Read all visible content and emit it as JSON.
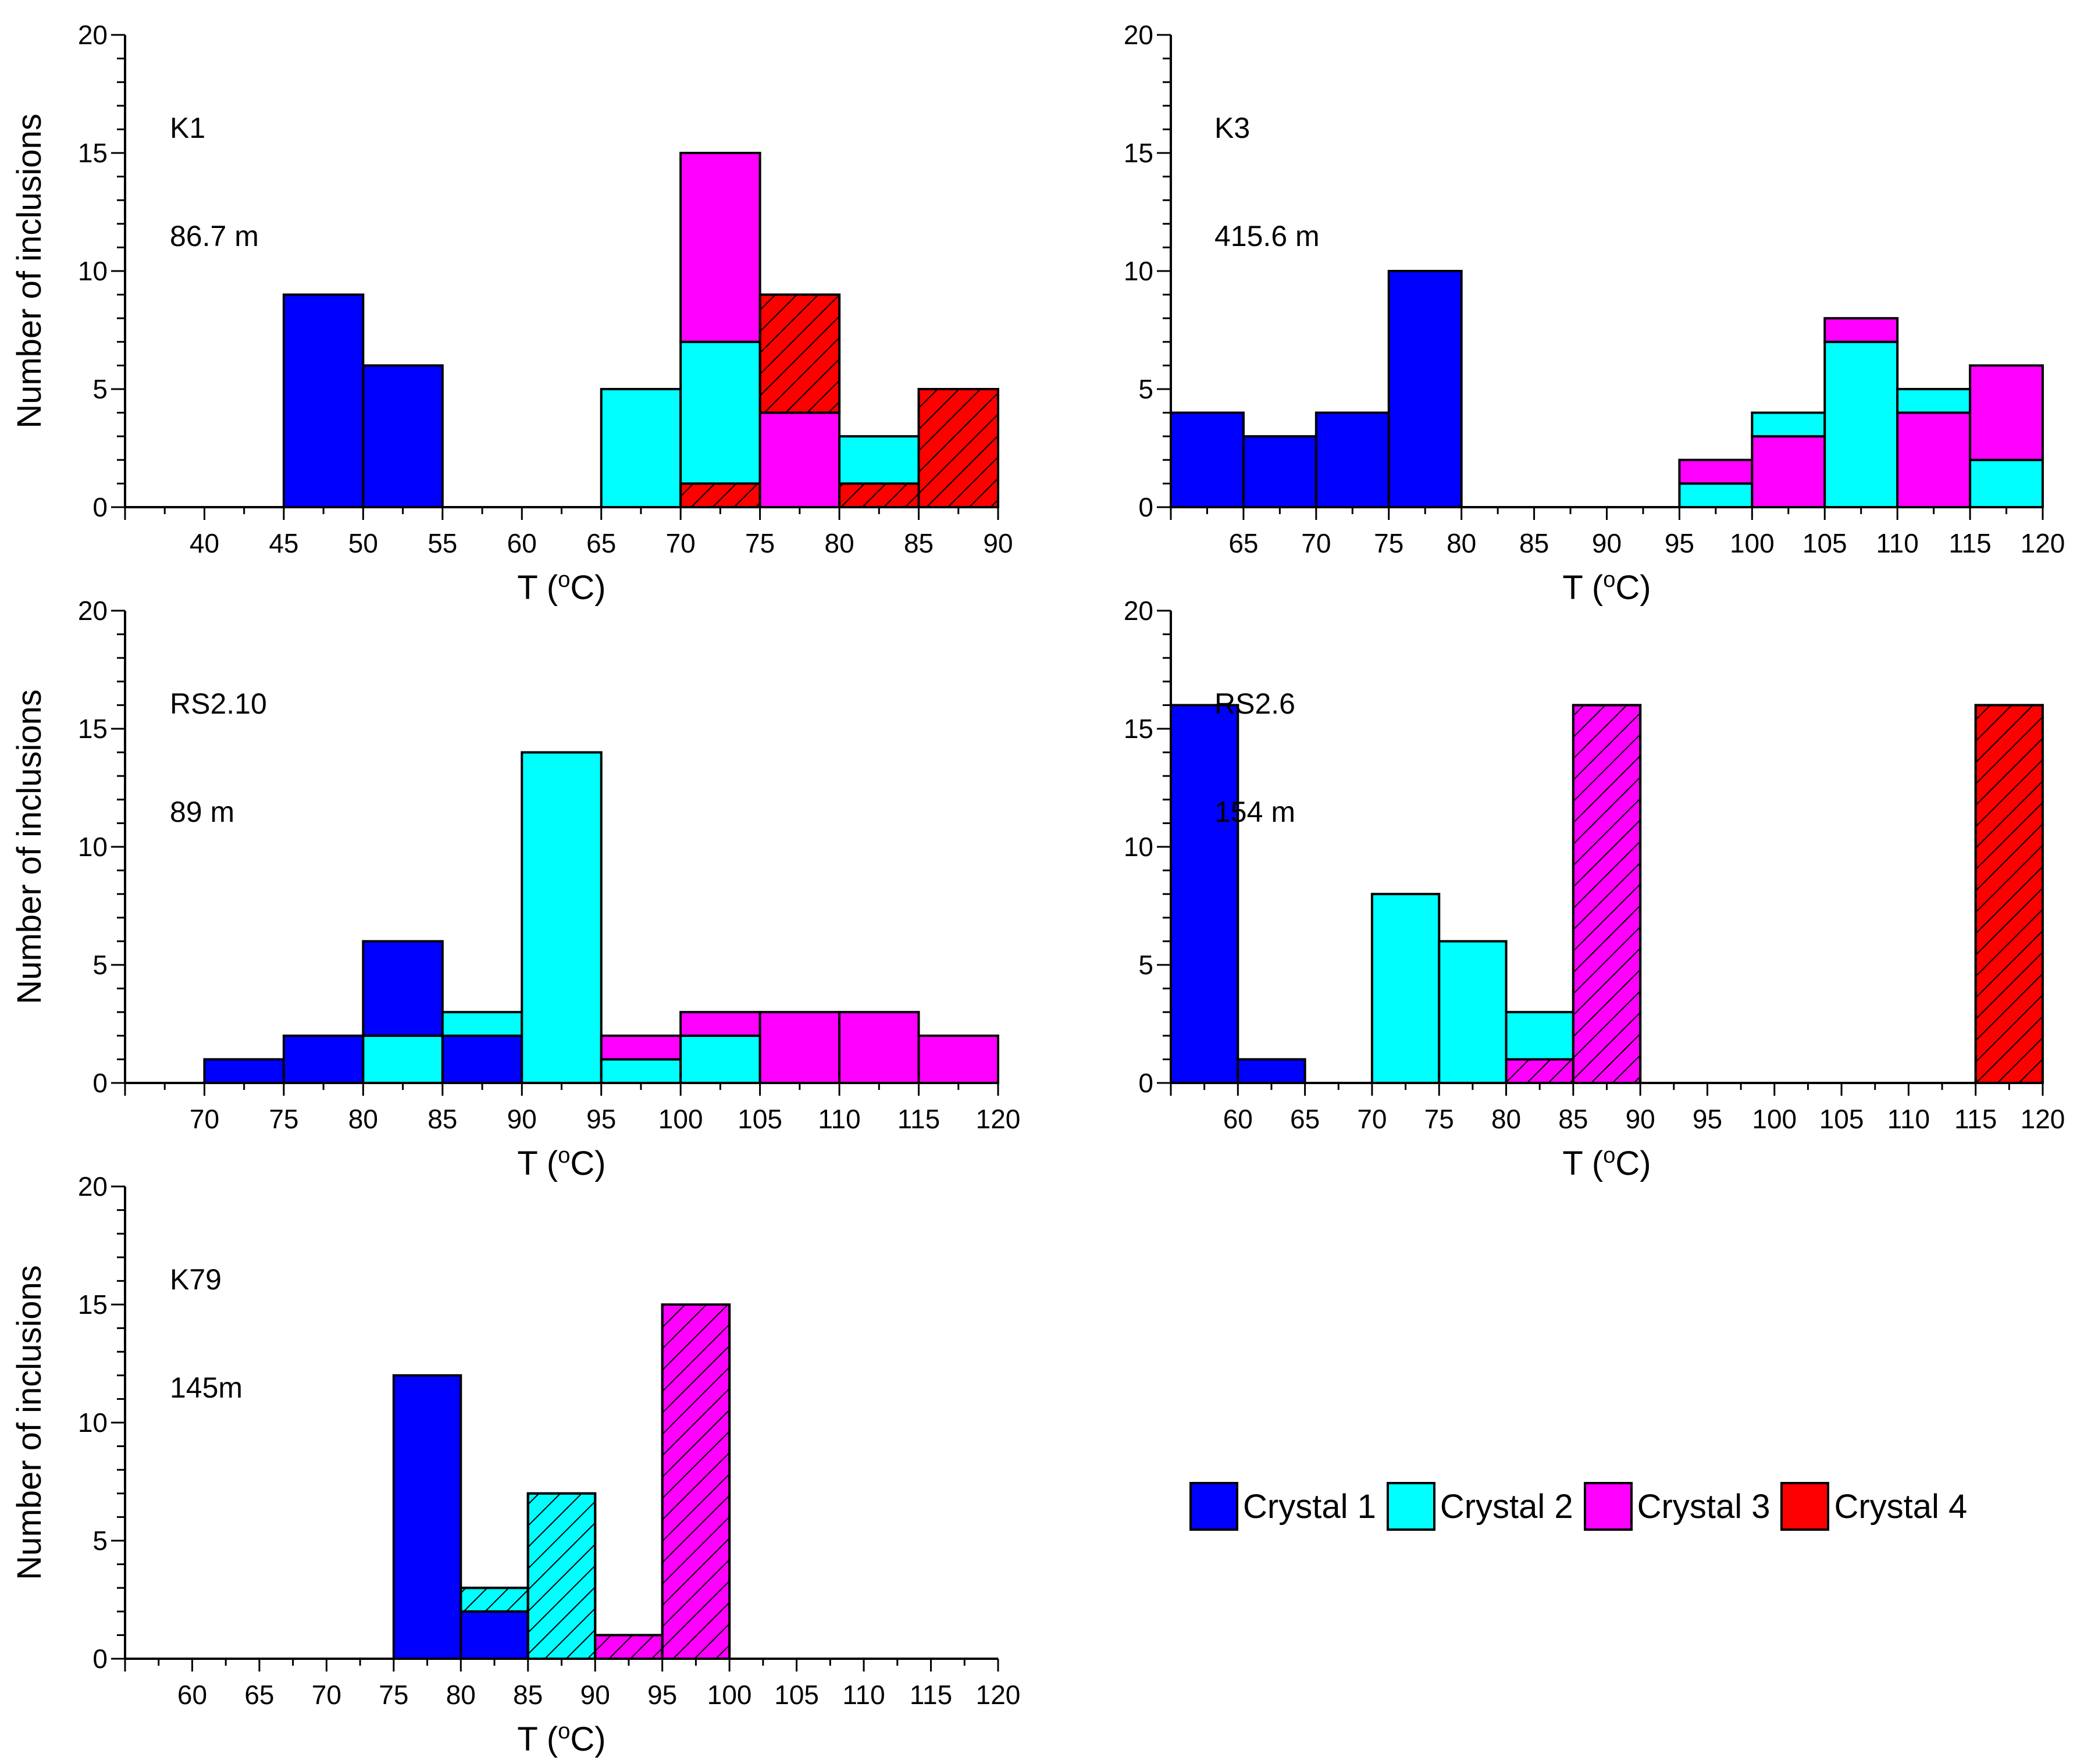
{
  "colors": {
    "crystal1": "#0000ff",
    "crystal2": "#00ffff",
    "crystal3": "#ff00ff",
    "crystal4": "#ff0000",
    "hatch": "#000000"
  },
  "legend": [
    {
      "label": "Crystal 1",
      "color": "#0000ff"
    },
    {
      "label": "Crystal 2",
      "color": "#00ffff"
    },
    {
      "label": "Crystal 3",
      "color": "#ff00ff"
    },
    {
      "label": "Crystal 4",
      "color": "#ff0000"
    }
  ],
  "chart_data": [
    {
      "type": "bar",
      "sample": "K1",
      "depth": "86.7 m",
      "xlabel": "T (",
      "xlabel_sup": "o",
      "xlabel_end": "C)",
      "ylabel": "Number of inclusions",
      "xlim": [
        35,
        90
      ],
      "ylim": [
        0,
        20
      ],
      "x_ticks": [
        40,
        45,
        50,
        55,
        60,
        65,
        70,
        75,
        80,
        85,
        90
      ],
      "y_ticks": [
        0,
        5,
        10,
        15,
        20
      ],
      "bars": [
        {
          "x0": 45,
          "x1": 50,
          "y0": 0,
          "y1": 9,
          "crystal": 1,
          "hatched": false
        },
        {
          "x0": 50,
          "x1": 55,
          "y0": 0,
          "y1": 6,
          "crystal": 1,
          "hatched": false
        },
        {
          "x0": 65,
          "x1": 70,
          "y0": 0,
          "y1": 5,
          "crystal": 2,
          "hatched": false
        },
        {
          "x0": 70,
          "x1": 75,
          "y0": 0,
          "y1": 1,
          "crystal": 4,
          "hatched": true
        },
        {
          "x0": 70,
          "x1": 75,
          "y0": 1,
          "y1": 7,
          "crystal": 2,
          "hatched": false
        },
        {
          "x0": 70,
          "x1": 75,
          "y0": 7,
          "y1": 15,
          "crystal": 3,
          "hatched": false
        },
        {
          "x0": 75,
          "x1": 80,
          "y0": 0,
          "y1": 4,
          "crystal": 3,
          "hatched": false
        },
        {
          "x0": 75,
          "x1": 80,
          "y0": 4,
          "y1": 9,
          "crystal": 4,
          "hatched": true
        },
        {
          "x0": 80,
          "x1": 85,
          "y0": 0,
          "y1": 1,
          "crystal": 4,
          "hatched": true
        },
        {
          "x0": 80,
          "x1": 85,
          "y0": 1,
          "y1": 3,
          "crystal": 2,
          "hatched": false
        },
        {
          "x0": 85,
          "x1": 90,
          "y0": 0,
          "y1": 5,
          "crystal": 4,
          "hatched": true
        }
      ]
    },
    {
      "type": "bar",
      "sample": "K3",
      "depth": "415.6 m",
      "xlabel": "T (",
      "xlabel_sup": "o",
      "xlabel_end": "C)",
      "ylabel": "",
      "xlim": [
        60,
        120
      ],
      "ylim": [
        0,
        20
      ],
      "x_ticks": [
        65,
        70,
        75,
        80,
        85,
        90,
        95,
        100,
        105,
        110,
        115,
        120
      ],
      "y_ticks": [
        0,
        5,
        10,
        15,
        20
      ],
      "bars": [
        {
          "x0": 60,
          "x1": 65,
          "y0": 0,
          "y1": 4,
          "crystal": 1,
          "hatched": false
        },
        {
          "x0": 65,
          "x1": 70,
          "y0": 0,
          "y1": 3,
          "crystal": 1,
          "hatched": false
        },
        {
          "x0": 70,
          "x1": 75,
          "y0": 0,
          "y1": 4,
          "crystal": 1,
          "hatched": false
        },
        {
          "x0": 75,
          "x1": 80,
          "y0": 0,
          "y1": 10,
          "crystal": 1,
          "hatched": false
        },
        {
          "x0": 95,
          "x1": 100,
          "y0": 0,
          "y1": 1,
          "crystal": 2,
          "hatched": false
        },
        {
          "x0": 95,
          "x1": 100,
          "y0": 1,
          "y1": 2,
          "crystal": 3,
          "hatched": false
        },
        {
          "x0": 100,
          "x1": 105,
          "y0": 0,
          "y1": 3,
          "crystal": 3,
          "hatched": false
        },
        {
          "x0": 100,
          "x1": 105,
          "y0": 3,
          "y1": 4,
          "crystal": 2,
          "hatched": false
        },
        {
          "x0": 105,
          "x1": 110,
          "y0": 0,
          "y1": 7,
          "crystal": 2,
          "hatched": false
        },
        {
          "x0": 105,
          "x1": 110,
          "y0": 7,
          "y1": 8,
          "crystal": 3,
          "hatched": false
        },
        {
          "x0": 110,
          "x1": 115,
          "y0": 0,
          "y1": 4,
          "crystal": 3,
          "hatched": false
        },
        {
          "x0": 110,
          "x1": 115,
          "y0": 4,
          "y1": 5,
          "crystal": 2,
          "hatched": false
        },
        {
          "x0": 115,
          "x1": 120,
          "y0": 0,
          "y1": 2,
          "crystal": 2,
          "hatched": false
        },
        {
          "x0": 115,
          "x1": 120,
          "y0": 2,
          "y1": 6,
          "crystal": 3,
          "hatched": false
        }
      ]
    },
    {
      "type": "bar",
      "sample": "RS2.10",
      "depth": "89 m",
      "xlabel": "T (",
      "xlabel_sup": "o",
      "xlabel_end": "C)",
      "ylabel": "Number of inclusions",
      "xlim": [
        65,
        120
      ],
      "ylim": [
        0,
        20
      ],
      "x_ticks": [
        70,
        75,
        80,
        85,
        90,
        95,
        100,
        105,
        110,
        115,
        120
      ],
      "y_ticks": [
        0,
        5,
        10,
        15,
        20
      ],
      "bars": [
        {
          "x0": 70,
          "x1": 75,
          "y0": 0,
          "y1": 1,
          "crystal": 1,
          "hatched": false
        },
        {
          "x0": 75,
          "x1": 80,
          "y0": 0,
          "y1": 2,
          "crystal": 1,
          "hatched": false
        },
        {
          "x0": 80,
          "x1": 85,
          "y0": 0,
          "y1": 2,
          "crystal": 2,
          "hatched": false
        },
        {
          "x0": 80,
          "x1": 85,
          "y0": 2,
          "y1": 6,
          "crystal": 1,
          "hatched": false
        },
        {
          "x0": 85,
          "x1": 90,
          "y0": 0,
          "y1": 2,
          "crystal": 1,
          "hatched": false
        },
        {
          "x0": 85,
          "x1": 90,
          "y0": 2,
          "y1": 3,
          "crystal": 2,
          "hatched": false
        },
        {
          "x0": 90,
          "x1": 95,
          "y0": 0,
          "y1": 14,
          "crystal": 2,
          "hatched": false
        },
        {
          "x0": 95,
          "x1": 100,
          "y0": 0,
          "y1": 1,
          "crystal": 2,
          "hatched": false
        },
        {
          "x0": 95,
          "x1": 100,
          "y0": 1,
          "y1": 2,
          "crystal": 3,
          "hatched": false
        },
        {
          "x0": 100,
          "x1": 105,
          "y0": 0,
          "y1": 2,
          "crystal": 2,
          "hatched": false
        },
        {
          "x0": 100,
          "x1": 105,
          "y0": 2,
          "y1": 3,
          "crystal": 3,
          "hatched": false
        },
        {
          "x0": 105,
          "x1": 110,
          "y0": 0,
          "y1": 3,
          "crystal": 3,
          "hatched": false
        },
        {
          "x0": 110,
          "x1": 115,
          "y0": 0,
          "y1": 3,
          "crystal": 3,
          "hatched": false
        },
        {
          "x0": 115,
          "x1": 120,
          "y0": 0,
          "y1": 2,
          "crystal": 3,
          "hatched": false
        }
      ]
    },
    {
      "type": "bar",
      "sample": "RS2.6",
      "depth": "154 m",
      "xlabel": "T (",
      "xlabel_sup": "o",
      "xlabel_end": "C)",
      "ylabel": "",
      "xlim": [
        55,
        120
      ],
      "ylim": [
        0,
        20
      ],
      "x_ticks": [
        60,
        65,
        70,
        75,
        80,
        85,
        90,
        95,
        100,
        105,
        110,
        115,
        120
      ],
      "y_ticks": [
        0,
        5,
        10,
        15,
        20
      ],
      "bars": [
        {
          "x0": 55,
          "x1": 60,
          "y0": 0,
          "y1": 16,
          "crystal": 1,
          "hatched": false
        },
        {
          "x0": 60,
          "x1": 65,
          "y0": 0,
          "y1": 1,
          "crystal": 1,
          "hatched": false
        },
        {
          "x0": 70,
          "x1": 75,
          "y0": 0,
          "y1": 8,
          "crystal": 2,
          "hatched": false
        },
        {
          "x0": 75,
          "x1": 80,
          "y0": 0,
          "y1": 6,
          "crystal": 2,
          "hatched": false
        },
        {
          "x0": 80,
          "x1": 85,
          "y0": 0,
          "y1": 1,
          "crystal": 3,
          "hatched": true
        },
        {
          "x0": 80,
          "x1": 85,
          "y0": 1,
          "y1": 3,
          "crystal": 2,
          "hatched": false
        },
        {
          "x0": 85,
          "x1": 90,
          "y0": 0,
          "y1": 16,
          "crystal": 3,
          "hatched": true
        },
        {
          "x0": 115,
          "x1": 120,
          "y0": 0,
          "y1": 16,
          "crystal": 4,
          "hatched": true
        }
      ]
    },
    {
      "type": "bar",
      "sample": "K79",
      "depth": "145m",
      "xlabel": "T (",
      "xlabel_sup": "o",
      "xlabel_end": "C)",
      "ylabel": "Number of inclusions",
      "xlim": [
        55,
        120
      ],
      "ylim": [
        0,
        20
      ],
      "x_ticks": [
        60,
        65,
        70,
        75,
        80,
        85,
        90,
        95,
        100,
        105,
        110,
        115,
        120
      ],
      "y_ticks": [
        0,
        5,
        10,
        15,
        20
      ],
      "bars": [
        {
          "x0": 75,
          "x1": 80,
          "y0": 0,
          "y1": 12,
          "crystal": 1,
          "hatched": false
        },
        {
          "x0": 80,
          "x1": 85,
          "y0": 0,
          "y1": 2,
          "crystal": 1,
          "hatched": false
        },
        {
          "x0": 80,
          "x1": 85,
          "y0": 2,
          "y1": 3,
          "crystal": 2,
          "hatched": true
        },
        {
          "x0": 85,
          "x1": 90,
          "y0": 0,
          "y1": 7,
          "crystal": 2,
          "hatched": true
        },
        {
          "x0": 90,
          "x1": 95,
          "y0": 0,
          "y1": 1,
          "crystal": 3,
          "hatched": true
        },
        {
          "x0": 95,
          "x1": 100,
          "y0": 0,
          "y1": 15,
          "crystal": 3,
          "hatched": true
        }
      ]
    }
  ]
}
